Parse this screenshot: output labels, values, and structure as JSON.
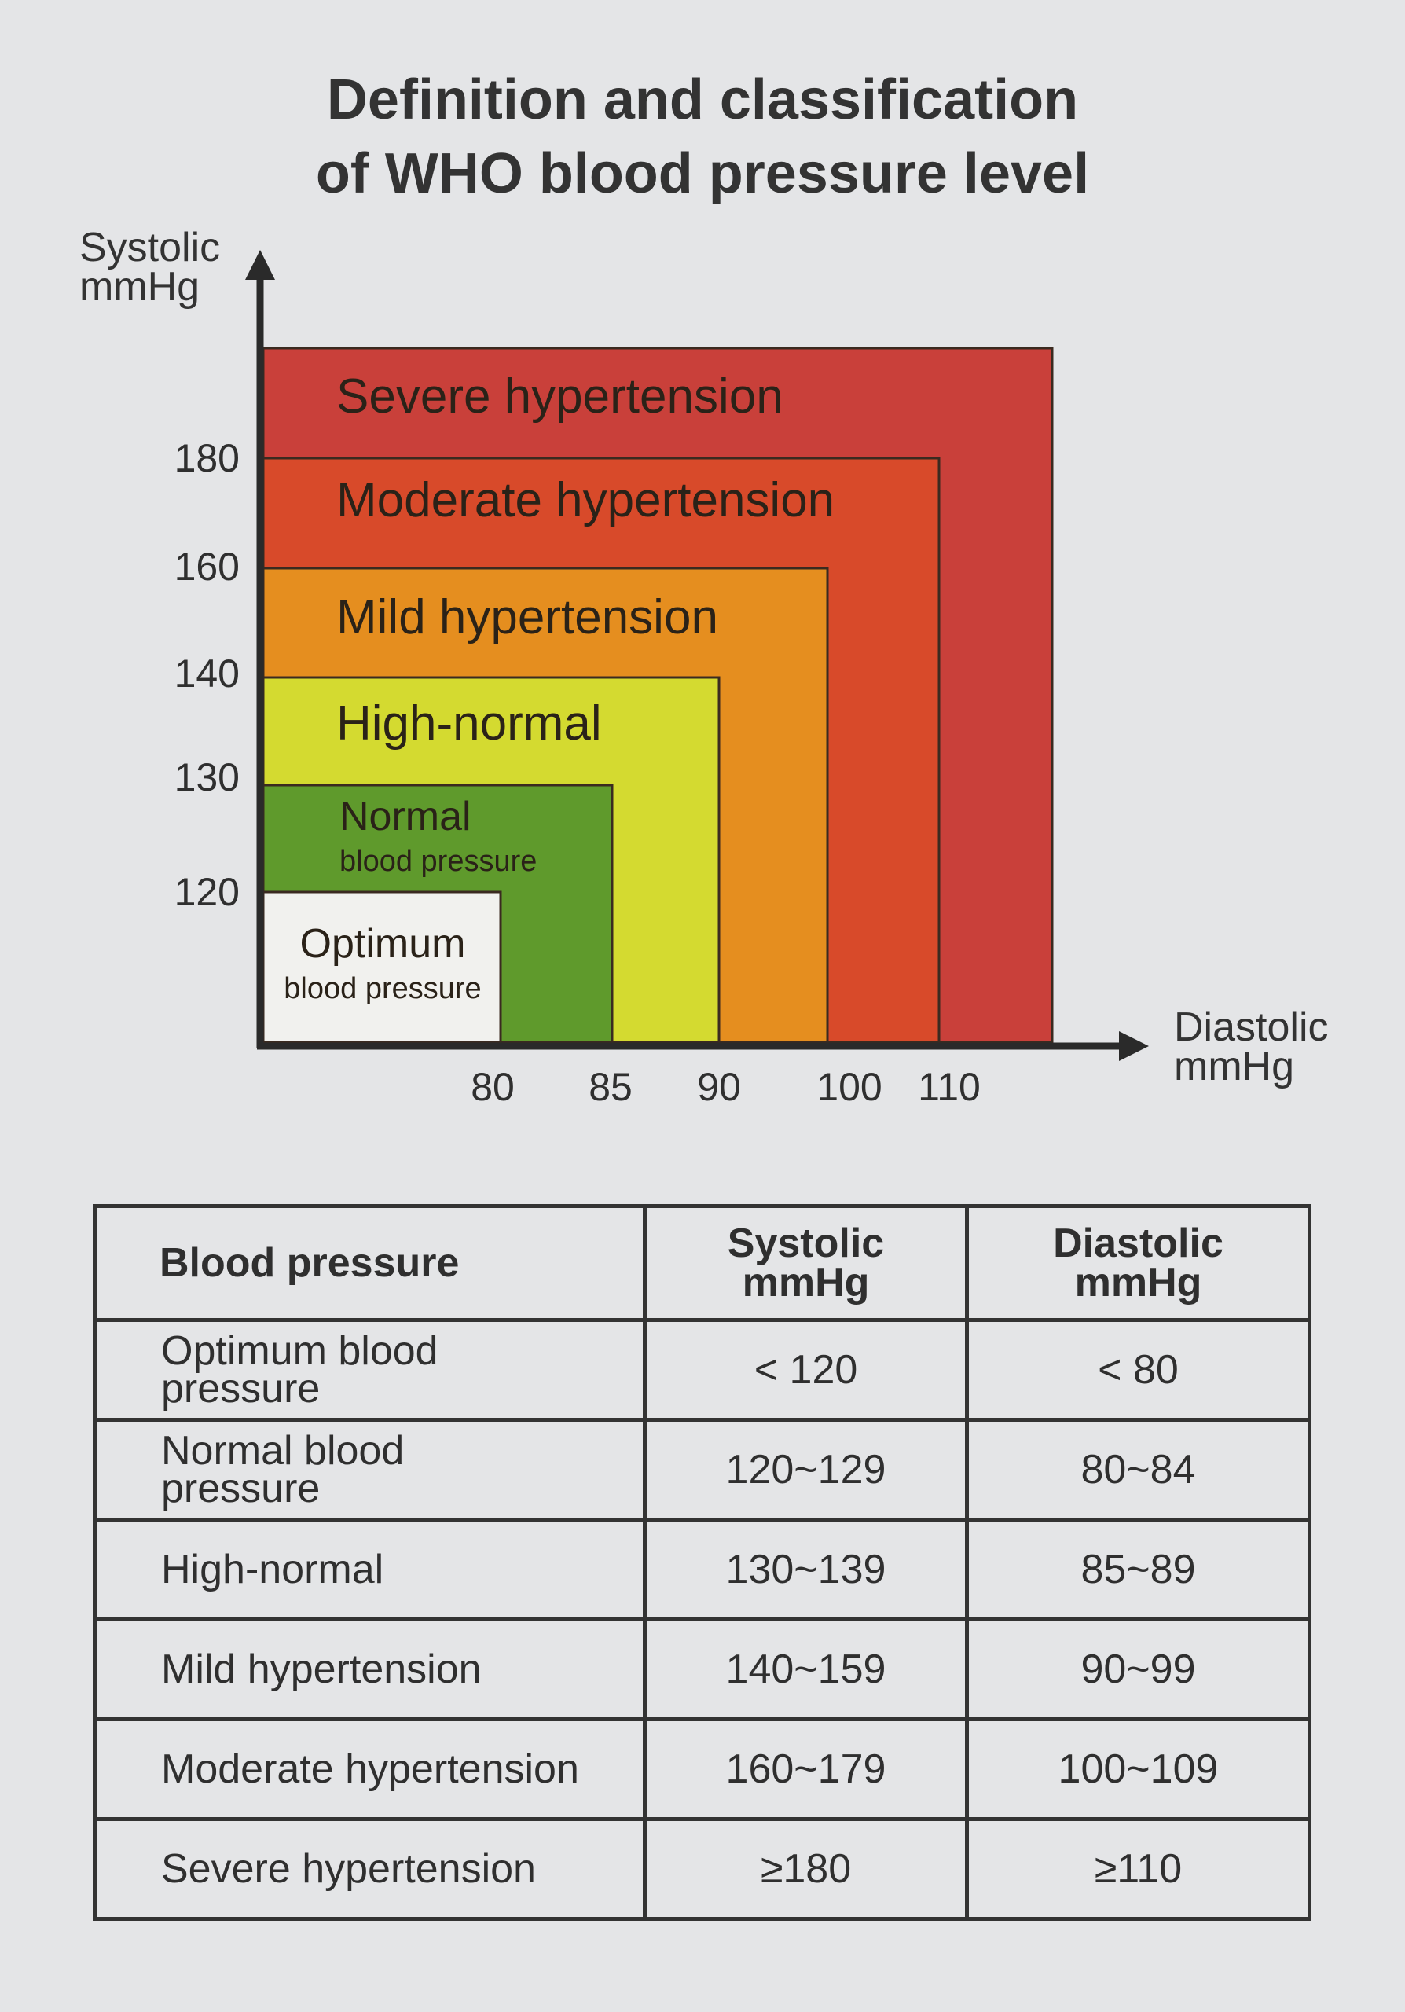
{
  "title": [
    "Definition and classification",
    "of WHO blood pressure level"
  ],
  "chart_data": {
    "type": "area",
    "title": "Definition and classification of WHO blood pressure level",
    "ylabel": [
      "Systolic",
      "mmHg"
    ],
    "xlabel": [
      "Diastolic",
      "mmHg"
    ],
    "y_ticks": [
      120,
      130,
      140,
      160,
      180
    ],
    "x_ticks": [
      80,
      85,
      90,
      100,
      110
    ],
    "grid": false,
    "zones": [
      {
        "name": "Severe hypertension",
        "lines": [
          "Severe hypertension"
        ],
        "systolic_min": 180,
        "diastolic_min": 110,
        "color": "#c9403a"
      },
      {
        "name": "Moderate hypertension",
        "lines": [
          "Moderate hypertension"
        ],
        "systolic_max": 180,
        "diastolic_max": 110,
        "color": "#d84a2a"
      },
      {
        "name": "Mild hypertension",
        "lines": [
          "Mild hypertension"
        ],
        "systolic_max": 160,
        "diastolic_max": 100,
        "color": "#e58e1f"
      },
      {
        "name": "High-normal",
        "lines": [
          "High-normal"
        ],
        "systolic_max": 140,
        "diastolic_max": 90,
        "color": "#d4da30"
      },
      {
        "name": "Normal blood pressure",
        "lines": [
          "Normal",
          "blood pressure"
        ],
        "systolic_max": 130,
        "diastolic_max": 85,
        "color": "#5f9a2c"
      },
      {
        "name": "Optimum blood pressure",
        "lines": [
          "Optimum",
          "blood pressure"
        ],
        "systolic_max": 120,
        "diastolic_max": 80,
        "color": "#f1f1ee"
      }
    ]
  },
  "table": {
    "headers": [
      "Blood pressure",
      [
        "Systolic",
        "mmHg"
      ],
      [
        "Diastolic",
        "mmHg"
      ]
    ],
    "rows": [
      {
        "category": [
          "Optimum blood",
          "pressure"
        ],
        "systolic": "< 120",
        "diastolic": "< 80"
      },
      {
        "category": [
          "Normal blood",
          "pressure"
        ],
        "systolic": "120~129",
        "diastolic": "80~84"
      },
      {
        "category": [
          "High-normal"
        ],
        "systolic": "130~139",
        "diastolic": "85~89"
      },
      {
        "category": [
          "Mild hypertension"
        ],
        "systolic": "140~159",
        "diastolic": "90~99"
      },
      {
        "category": [
          "Moderate hypertension"
        ],
        "systolic": "160~179",
        "diastolic": "100~109"
      },
      {
        "category": [
          "Severe hypertension"
        ],
        "systolic": "≥180",
        "diastolic": "≥110"
      }
    ]
  }
}
